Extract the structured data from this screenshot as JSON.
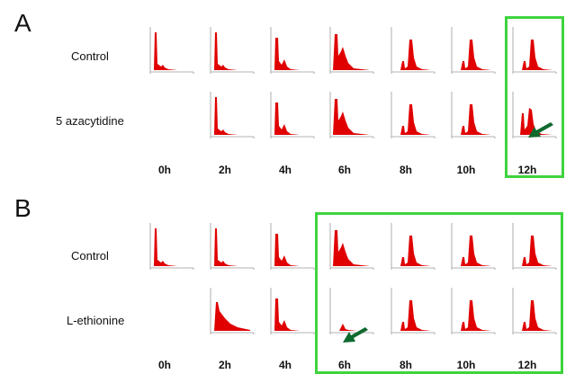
{
  "colors": {
    "histogram_fill": "#e00000",
    "axis": "#9a9a9a",
    "highlight_box": "#3ed43e",
    "arrow": "#0f6a2e"
  },
  "panels": [
    {
      "letter": "A",
      "rows": [
        {
          "label": "Control",
          "shapes": [
            "g1",
            "g1",
            "g1m",
            "g1s",
            "s",
            "s",
            "s"
          ]
        },
        {
          "label": "5 azacytidine",
          "shapes": [
            "empty",
            "g1",
            "g1m",
            "g1s",
            "s",
            "s",
            "s2"
          ]
        }
      ],
      "times": [
        "0h",
        "2h",
        "4h",
        "6h",
        "8h",
        "10h",
        "12h"
      ],
      "highlight": "12h column",
      "arrow_target": "5 azacytidine, 12h"
    },
    {
      "letter": "B",
      "rows": [
        {
          "label": "Control",
          "shapes": [
            "g1",
            "g1",
            "g1m",
            "g1s",
            "s",
            "s",
            "s"
          ]
        },
        {
          "label": "L-ethionine",
          "shapes": [
            "empty",
            "broad",
            "g1m",
            "low",
            "s",
            "s",
            "s"
          ]
        }
      ],
      "times": [
        "0h",
        "2h",
        "4h",
        "6h",
        "8h",
        "10h",
        "12h"
      ],
      "highlight": "6h to 12h columns",
      "arrow_target": "L-ethionine, 6h"
    }
  ]
}
